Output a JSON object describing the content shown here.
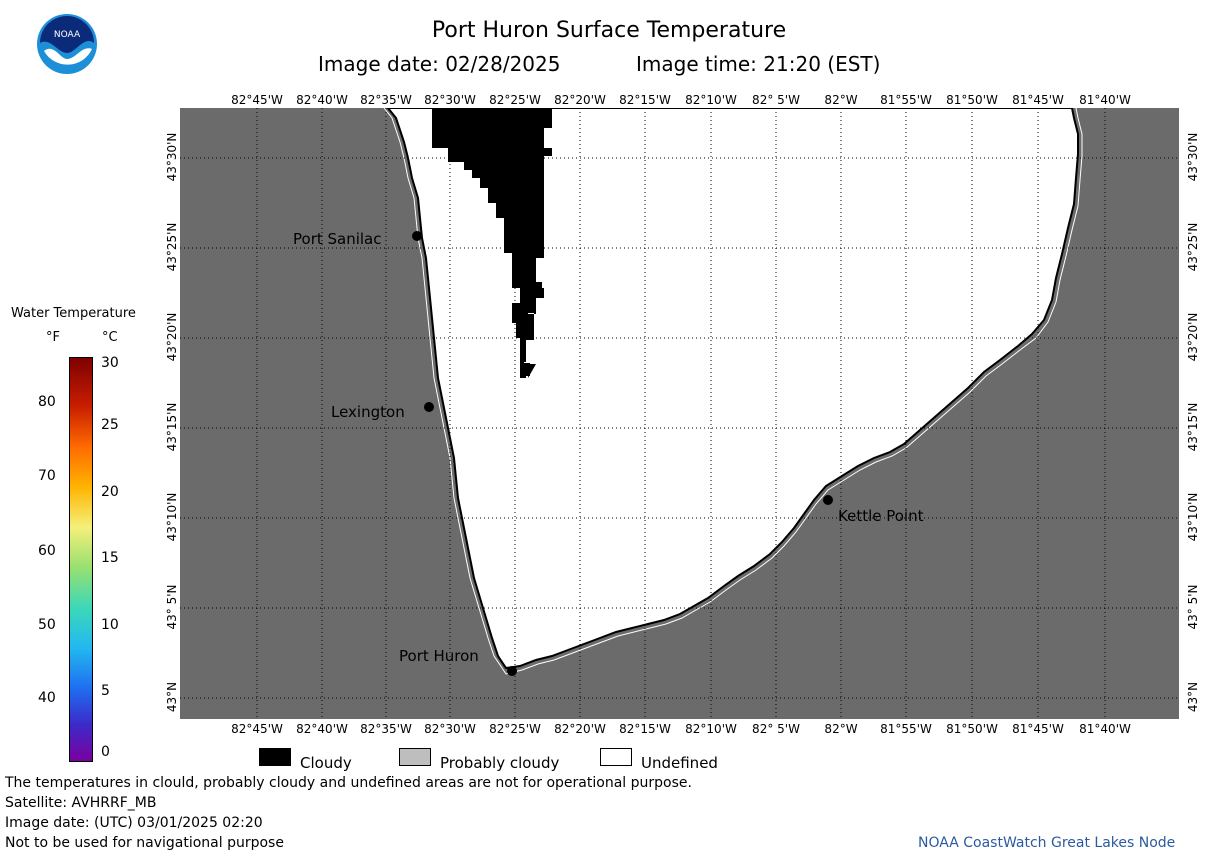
{
  "header": {
    "title": "Port Huron Surface Temperature",
    "image_date": "Image date: 02/28/2025",
    "image_time": "Image time: 21:20 (EST)"
  },
  "logo": {
    "text": "NOAA",
    "icon": "noaa-logo-icon",
    "colors": {
      "outer": "#1d8fd8",
      "inner": "#0b2b7a"
    }
  },
  "map": {
    "longitude_labels": [
      "82°45'W",
      "82°40'W",
      "82°35'W",
      "82°30'W",
      "82°25'W",
      "82°20'W",
      "82°15'W",
      "82°10'W",
      "82° 5'W",
      "82°W",
      "81°55'W",
      "81°50'W",
      "81°45'W",
      "81°40'W"
    ],
    "latitude_labels": [
      "43°30'N",
      "43°25'N",
      "43°20'N",
      "43°15'N",
      "43°10'N",
      "43° 5'N",
      "43°N"
    ],
    "places": [
      {
        "name": "Port Sanilac"
      },
      {
        "name": "Lexington"
      },
      {
        "name": "Kettle Point"
      },
      {
        "name": "Port Huron"
      }
    ],
    "colors": {
      "land": "#6b6b6b",
      "undefined": "#ffffff",
      "cloudy": "#000000",
      "grid": "#000000"
    }
  },
  "legend": {
    "title": "Water Temperature",
    "unit_f": "°F",
    "unit_c": "°C",
    "f_ticks": [
      "80",
      "70",
      "60",
      "50",
      "40"
    ],
    "c_ticks": [
      "30",
      "25",
      "20",
      "15",
      "10",
      "5",
      "0"
    ],
    "categories": [
      {
        "label": "Cloudy",
        "color": "#000000"
      },
      {
        "label": "Probably cloudy",
        "color": "#bebebe"
      },
      {
        "label": "Undefined",
        "color": "#ffffff"
      }
    ]
  },
  "footer": {
    "disclaimer": "The temperatures in clould, probably cloudy and undefined areas are not for operational purpose.",
    "satellite": "Satellite: AVHRRF_MB",
    "utc_date": "Image date: (UTC) 03/01/2025  02:20",
    "nav_warning": "Not to be used for navigational purpose",
    "credit": "NOAA CoastWatch Great Lakes Node"
  }
}
